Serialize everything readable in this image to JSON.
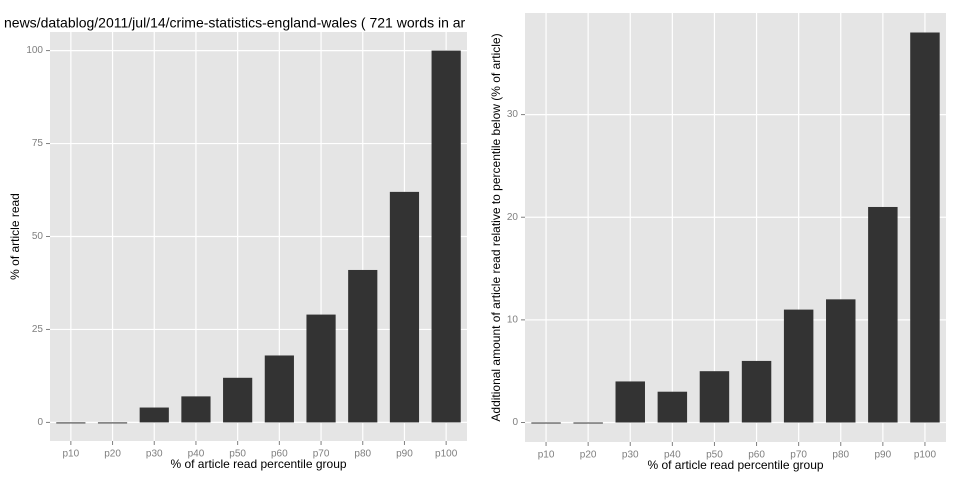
{
  "chart_data": [
    {
      "type": "bar",
      "title": "news/datablog/2011/jul/14/crime-statistics-england-wales ( 721 words in ar",
      "x_label": "% of article read percentile group",
      "y_label": "% of article read",
      "categories": [
        "p10",
        "p20",
        "p30",
        "p40",
        "p50",
        "p60",
        "p70",
        "p80",
        "p90",
        "p100"
      ],
      "values": [
        0,
        0,
        4,
        7,
        12,
        18,
        29,
        41,
        62,
        100
      ],
      "color": "#333333",
      "ylim": [
        -5,
        105
      ],
      "yticks": [
        0,
        25,
        50,
        75,
        100
      ],
      "grid": true
    },
    {
      "type": "bar",
      "x_label": "% of article read percentile group",
      "y_label": "Additional amount of article read relative to percentile below (% of article)",
      "categories": [
        "p10",
        "p20",
        "p30",
        "p40",
        "p50",
        "p60",
        "p70",
        "p80",
        "p90",
        "p100"
      ],
      "values": [
        0,
        0,
        4,
        3,
        5,
        6,
        11,
        12,
        21,
        38
      ],
      "color": "#333333",
      "ylim": [
        -1.9,
        39.9
      ],
      "yticks": [
        0,
        10,
        20,
        30
      ],
      "grid": true
    }
  ]
}
